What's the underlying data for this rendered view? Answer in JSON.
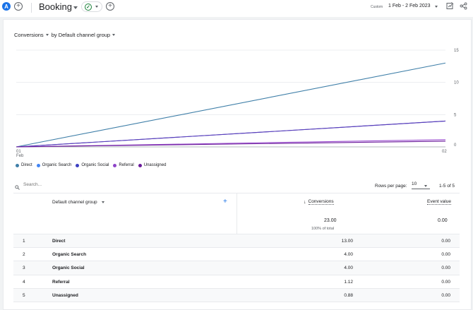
{
  "topbar": {
    "avatar": "A",
    "title": "Booking",
    "date_label": "Custom",
    "date_range": "1 Feb - 2 Feb 2023",
    "icons": [
      "plus-icon",
      "check-circle-icon",
      "chevron-down-icon",
      "edit-chart-icon",
      "share-icon"
    ]
  },
  "chart_header": {
    "metric": "Conversions",
    "dimension": "by Default channel group"
  },
  "chart_data": {
    "type": "line",
    "x": [
      "01 Feb",
      "02"
    ],
    "ylim": [
      0,
      15
    ],
    "yticks": [
      "0",
      "5",
      "10",
      "15"
    ],
    "series": [
      {
        "name": "Direct",
        "color": "#4285f4",
        "values": [
          0,
          13.0
        ]
      },
      {
        "name": "Organic Search",
        "color": "#5b5fd6",
        "values": [
          0,
          4.0
        ]
      },
      {
        "name": "Organic Social",
        "color": "#4a3fc7",
        "values": [
          0,
          4.0
        ]
      },
      {
        "name": "Referral",
        "color": "#8e44c8",
        "values": [
          0,
          1.12
        ]
      },
      {
        "name": "Unassigned",
        "color": "#6a1b9a",
        "values": [
          0,
          0.88
        ]
      }
    ],
    "legend_position": "bottom-left"
  },
  "legend": [
    {
      "label": "Direct",
      "color": "#3f7fa8"
    },
    {
      "label": "Organic Search",
      "color": "#4285f4"
    },
    {
      "label": "Organic Social",
      "color": "#3c3fc2"
    },
    {
      "label": "Referral",
      "color": "#8e44c8"
    },
    {
      "label": "Unassigned",
      "color": "#6a1b9a"
    }
  ],
  "table_controls": {
    "search_placeholder": "Search...",
    "rows_per_page_label": "Rows per page:",
    "rows_per_page_value": "10",
    "pagination": "1-5 of 5"
  },
  "table": {
    "col_dimension": "Default channel group",
    "col_conversions": "Conversions",
    "col_event_value": "Event value",
    "total_conversions": "23.00",
    "total_conversions_sub": "100% of total",
    "total_event_value": "0.00",
    "rows": [
      {
        "rank": "1",
        "name": "Direct",
        "conversions": "13.00",
        "event_value": "0.00"
      },
      {
        "rank": "2",
        "name": "Organic Search",
        "conversions": "4.00",
        "event_value": "0.00"
      },
      {
        "rank": "3",
        "name": "Organic Social",
        "conversions": "4.00",
        "event_value": "0.00"
      },
      {
        "rank": "4",
        "name": "Referral",
        "conversions": "1.12",
        "event_value": "0.00"
      },
      {
        "rank": "5",
        "name": "Unassigned",
        "conversions": "0.88",
        "event_value": "0.00"
      }
    ]
  }
}
